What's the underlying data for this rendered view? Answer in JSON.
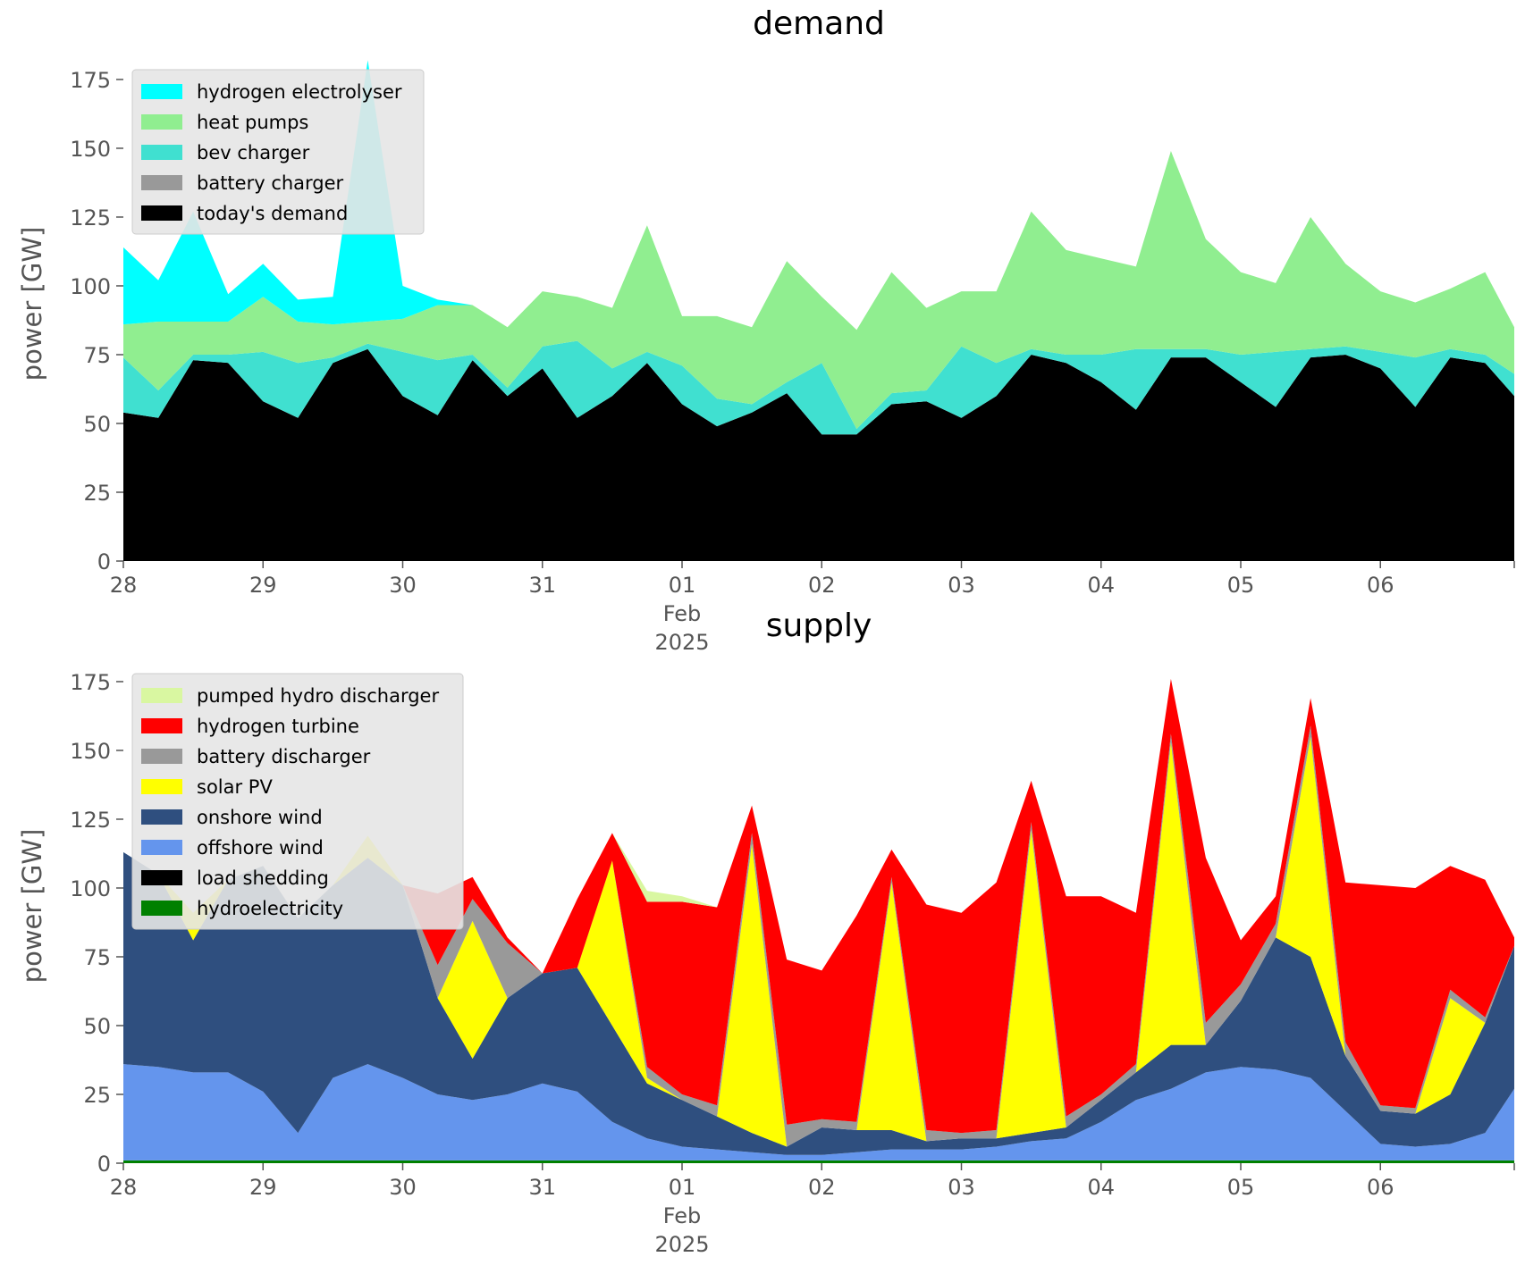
{
  "figure": {
    "background": "#ffffff",
    "axes_background": "#ffffff"
  },
  "chart_data": [
    {
      "type": "area",
      "title": "demand",
      "xlabel": "",
      "ylabel": "power [GW]",
      "ylim": [
        0,
        187
      ],
      "yticks": [
        0,
        25,
        50,
        75,
        100,
        125,
        150,
        175
      ],
      "x_range": [
        "2025-01-28 00:00",
        "2025-02-06 23:00"
      ],
      "xticks": [
        {
          "date": "2025-01-28",
          "label": "28"
        },
        {
          "date": "2025-01-29",
          "label": "29"
        },
        {
          "date": "2025-01-30",
          "label": "30"
        },
        {
          "date": "2025-01-31",
          "label": "31"
        },
        {
          "date": "2025-02-01",
          "label": "01",
          "sublabel": [
            "Feb",
            "2025"
          ]
        },
        {
          "date": "2025-02-02",
          "label": "02"
        },
        {
          "date": "2025-02-03",
          "label": "03"
        },
        {
          "date": "2025-02-04",
          "label": "04"
        },
        {
          "date": "2025-02-05",
          "label": "05"
        },
        {
          "date": "2025-02-06",
          "label": "06"
        }
      ],
      "grid": false,
      "legend_position": "upper-left",
      "stacking": "cumulative, bottom to top",
      "x": [
        "2025-01-28 00:00",
        "2025-01-28 06:00",
        "2025-01-28 12:00",
        "2025-01-28 18:00",
        "2025-01-29 00:00",
        "2025-01-29 06:00",
        "2025-01-29 12:00",
        "2025-01-29 18:00",
        "2025-01-30 00:00",
        "2025-01-30 06:00",
        "2025-01-30 12:00",
        "2025-01-30 18:00",
        "2025-01-31 00:00",
        "2025-01-31 06:00",
        "2025-01-31 12:00",
        "2025-01-31 18:00",
        "2025-02-01 00:00",
        "2025-02-01 06:00",
        "2025-02-01 12:00",
        "2025-02-01 18:00",
        "2025-02-02 00:00",
        "2025-02-02 06:00",
        "2025-02-02 12:00",
        "2025-02-02 18:00",
        "2025-02-03 00:00",
        "2025-02-03 06:00",
        "2025-02-03 12:00",
        "2025-02-03 18:00",
        "2025-02-04 00:00",
        "2025-02-04 06:00",
        "2025-02-04 12:00",
        "2025-02-04 18:00",
        "2025-02-05 00:00",
        "2025-02-05 06:00",
        "2025-02-05 12:00",
        "2025-02-05 18:00",
        "2025-02-06 00:00",
        "2025-02-06 06:00",
        "2025-02-06 12:00",
        "2025-02-06 18:00",
        "2025-02-06 23:00"
      ],
      "series": [
        {
          "name": "today's demand",
          "color": "#000000",
          "values": [
            54,
            52,
            73,
            72,
            58,
            52,
            72,
            77,
            60,
            53,
            73,
            60,
            70,
            52,
            60,
            72,
            57,
            49,
            54,
            61,
            46,
            46,
            57,
            58,
            52,
            60,
            75,
            72,
            65,
            55,
            74,
            74,
            65,
            56,
            74,
            75,
            70,
            56,
            74,
            72,
            60
          ]
        },
        {
          "name": "battery charger",
          "color": "#999999",
          "values": [
            0,
            0,
            0,
            0,
            0,
            0,
            0,
            0,
            0,
            0,
            0,
            0,
            0,
            0,
            0,
            0,
            0,
            0,
            0,
            0,
            0,
            0,
            0,
            0,
            0,
            0,
            0,
            0,
            0,
            0,
            0,
            0,
            0,
            0,
            0,
            0,
            0,
            0,
            0,
            0,
            0
          ]
        },
        {
          "name": "bev charger",
          "color": "#40e0d0",
          "values": [
            20,
            10,
            2,
            3,
            18,
            20,
            2,
            2,
            16,
            20,
            2,
            3,
            8,
            28,
            10,
            4,
            14,
            10,
            3,
            4,
            26,
            2,
            4,
            4,
            26,
            12,
            2,
            3,
            10,
            22,
            3,
            3,
            10,
            20,
            3,
            3,
            6,
            18,
            3,
            3,
            8
          ]
        },
        {
          "name": "heat pumps",
          "color": "#90ee90",
          "values": [
            12,
            25,
            12,
            12,
            20,
            15,
            12,
            8,
            12,
            20,
            18,
            22,
            20,
            16,
            22,
            46,
            18,
            30,
            28,
            44,
            24,
            36,
            44,
            30,
            20,
            26,
            50,
            38,
            35,
            30,
            72,
            40,
            30,
            25,
            48,
            30,
            22,
            20,
            22,
            30,
            17
          ]
        },
        {
          "name": "hydrogen electrolyser",
          "color": "#00ffff",
          "values": [
            28,
            15,
            40,
            10,
            12,
            8,
            10,
            95,
            12,
            2,
            0,
            0,
            0,
            0,
            0,
            0,
            0,
            0,
            0,
            0,
            0,
            0,
            0,
            0,
            0,
            0,
            0,
            0,
            0,
            0,
            0,
            0,
            0,
            0,
            0,
            0,
            0,
            0,
            0,
            0,
            0
          ]
        }
      ]
    },
    {
      "type": "area",
      "title": "supply",
      "xlabel": "",
      "ylabel": "power [GW]",
      "ylim": [
        0,
        187
      ],
      "yticks": [
        0,
        25,
        50,
        75,
        100,
        125,
        150,
        175
      ],
      "x_range": [
        "2025-01-28 00:00",
        "2025-02-06 23:00"
      ],
      "xticks": [
        {
          "date": "2025-01-28",
          "label": "28"
        },
        {
          "date": "2025-01-29",
          "label": "29"
        },
        {
          "date": "2025-01-30",
          "label": "30"
        },
        {
          "date": "2025-01-31",
          "label": "31"
        },
        {
          "date": "2025-02-01",
          "label": "01",
          "sublabel": [
            "Feb",
            "2025"
          ]
        },
        {
          "date": "2025-02-02",
          "label": "02"
        },
        {
          "date": "2025-02-03",
          "label": "03"
        },
        {
          "date": "2025-02-04",
          "label": "04"
        },
        {
          "date": "2025-02-05",
          "label": "05"
        },
        {
          "date": "2025-02-06",
          "label": "06"
        }
      ],
      "grid": false,
      "legend_position": "upper-left",
      "stacking": "cumulative, bottom to top",
      "x": [
        "2025-01-28 00:00",
        "2025-01-28 06:00",
        "2025-01-28 12:00",
        "2025-01-28 18:00",
        "2025-01-29 00:00",
        "2025-01-29 06:00",
        "2025-01-29 12:00",
        "2025-01-29 18:00",
        "2025-01-30 00:00",
        "2025-01-30 06:00",
        "2025-01-30 12:00",
        "2025-01-30 18:00",
        "2025-01-31 00:00",
        "2025-01-31 06:00",
        "2025-01-31 12:00",
        "2025-01-31 18:00",
        "2025-02-01 00:00",
        "2025-02-01 06:00",
        "2025-02-01 12:00",
        "2025-02-01 18:00",
        "2025-02-02 00:00",
        "2025-02-02 06:00",
        "2025-02-02 12:00",
        "2025-02-02 18:00",
        "2025-02-03 00:00",
        "2025-02-03 06:00",
        "2025-02-03 12:00",
        "2025-02-03 18:00",
        "2025-02-04 00:00",
        "2025-02-04 06:00",
        "2025-02-04 12:00",
        "2025-02-04 18:00",
        "2025-02-05 00:00",
        "2025-02-05 06:00",
        "2025-02-05 12:00",
        "2025-02-05 18:00",
        "2025-02-06 00:00",
        "2025-02-06 06:00",
        "2025-02-06 12:00",
        "2025-02-06 18:00",
        "2025-02-06 23:00"
      ],
      "series": [
        {
          "name": "hydroelectricity",
          "color": "#008000",
          "values": [
            1,
            1,
            1,
            1,
            1,
            1,
            1,
            1,
            1,
            1,
            1,
            1,
            1,
            1,
            1,
            1,
            1,
            1,
            1,
            1,
            1,
            1,
            1,
            1,
            1,
            1,
            1,
            1,
            1,
            1,
            1,
            1,
            1,
            1,
            1,
            1,
            1,
            1,
            1,
            1,
            1
          ]
        },
        {
          "name": "load shedding",
          "color": "#000000",
          "values": [
            0,
            0,
            0,
            0,
            0,
            0,
            0,
            0,
            0,
            0,
            0,
            0,
            0,
            0,
            0,
            0,
            0,
            0,
            0,
            0,
            0,
            0,
            0,
            0,
            0,
            0,
            0,
            0,
            0,
            0,
            0,
            0,
            0,
            0,
            0,
            0,
            0,
            0,
            0,
            0,
            0
          ]
        },
        {
          "name": "offshore wind",
          "color": "#6495ed",
          "values": [
            35,
            34,
            32,
            32,
            25,
            10,
            30,
            35,
            30,
            24,
            22,
            24,
            28,
            25,
            14,
            8,
            5,
            4,
            3,
            2,
            2,
            3,
            4,
            4,
            4,
            5,
            7,
            8,
            14,
            22,
            26,
            32,
            34,
            33,
            30,
            18,
            6,
            5,
            6,
            10,
            26
          ]
        },
        {
          "name": "onshore wind",
          "color": "#2f4f7f",
          "values": [
            77,
            70,
            48,
            70,
            82,
            78,
            70,
            75,
            70,
            35,
            15,
            35,
            40,
            45,
            35,
            20,
            17,
            12,
            7,
            3,
            10,
            8,
            7,
            3,
            4,
            3,
            3,
            4,
            8,
            10,
            16,
            10,
            24,
            48,
            44,
            20,
            12,
            12,
            18,
            40,
            52
          ]
        },
        {
          "name": "solar PV",
          "color": "#ffff00",
          "values": [
            0,
            0,
            10,
            0,
            0,
            0,
            0,
            8,
            0,
            0,
            50,
            0,
            0,
            0,
            60,
            2,
            0,
            0,
            105,
            0,
            0,
            0,
            90,
            0,
            0,
            0,
            110,
            0,
            0,
            0,
            110,
            0,
            0,
            0,
            80,
            0,
            0,
            0,
            35,
            0,
            0
          ]
        },
        {
          "name": "battery discharger",
          "color": "#999999",
          "values": [
            0,
            0,
            0,
            0,
            0,
            0,
            0,
            0,
            0,
            12,
            8,
            20,
            0,
            0,
            0,
            4,
            2,
            4,
            4,
            8,
            3,
            3,
            2,
            4,
            2,
            3,
            3,
            4,
            2,
            3,
            3,
            8,
            6,
            5,
            4,
            5,
            2,
            2,
            3,
            2,
            0
          ]
        },
        {
          "name": "hydrogen turbine",
          "color": "#ff0000",
          "values": [
            0,
            0,
            0,
            0,
            0,
            0,
            0,
            0,
            0,
            26,
            8,
            2,
            0,
            25,
            10,
            60,
            70,
            72,
            10,
            60,
            54,
            75,
            10,
            82,
            80,
            90,
            15,
            80,
            72,
            55,
            20,
            60,
            16,
            10,
            10,
            58,
            80,
            80,
            45,
            50,
            3
          ]
        },
        {
          "name": "pumped hydro discharger",
          "color": "#d9f7a1",
          "values": [
            0,
            0,
            0,
            0,
            0,
            0,
            0,
            0,
            0,
            0,
            0,
            0,
            0,
            0,
            0,
            4,
            2,
            0,
            0,
            0,
            0,
            0,
            0,
            0,
            0,
            0,
            0,
            0,
            0,
            0,
            0,
            0,
            0,
            0,
            0,
            0,
            0,
            0,
            0,
            0,
            0
          ]
        }
      ]
    }
  ]
}
